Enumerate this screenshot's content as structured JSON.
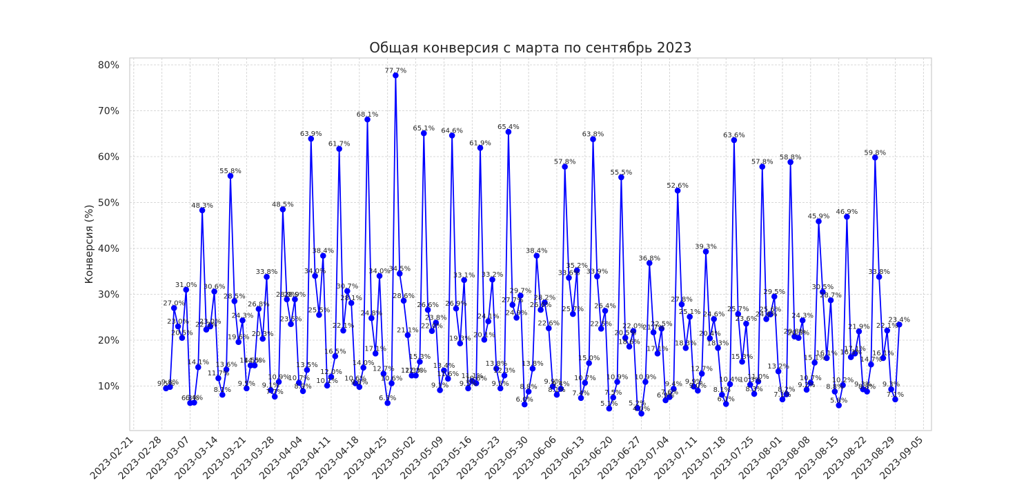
{
  "chart_data": {
    "type": "line",
    "title": "Общая конверсия с марта по сентябрь 2023",
    "xlabel": "",
    "ylabel": "Конверсия (%)",
    "xlim": [
      "2023-02-20",
      "2023-09-07"
    ],
    "ylim": [
      0.3,
      81.5
    ],
    "x_ticks": [
      "2023-02-21",
      "2023-02-28",
      "2023-03-07",
      "2023-03-14",
      "2023-03-21",
      "2023-03-28",
      "2023-04-04",
      "2023-04-11",
      "2023-04-18",
      "2023-04-25",
      "2023-05-02",
      "2023-05-09",
      "2023-05-16",
      "2023-05-23",
      "2023-05-30",
      "2023-06-06",
      "2023-06-13",
      "2023-06-20",
      "2023-06-27",
      "2023-07-04",
      "2023-07-11",
      "2023-07-18",
      "2023-07-25",
      "2023-08-01",
      "2023-08-08",
      "2023-08-15",
      "2023-08-22",
      "2023-08-29",
      "2023-09-05"
    ],
    "y_ticks": [
      10,
      20,
      30,
      40,
      50,
      60,
      70,
      80
    ],
    "y_tick_labels": [
      "10%",
      "20%",
      "30%",
      "40%",
      "50%",
      "60%",
      "70%",
      "80%"
    ],
    "grid": true,
    "line_color": "#0000ff",
    "marker_color": "#0000ff",
    "start_date": "2023-03-01",
    "values": [
      9.5,
      9.8,
      27.0,
      23.0,
      20.5,
      31.0,
      6.3,
      6.4,
      14.1,
      48.3,
      22.3,
      23.0,
      30.6,
      11.7,
      8.1,
      13.6,
      55.8,
      28.5,
      19.6,
      24.3,
      9.5,
      14.5,
      14.5,
      26.8,
      20.3,
      33.8,
      9.1,
      7.7,
      10.9,
      48.5,
      28.9,
      23.5,
      28.9,
      10.7,
      8.9,
      13.5,
      63.9,
      34.0,
      25.5,
      38.4,
      10.1,
      12.0,
      16.5,
      61.7,
      22.1,
      30.7,
      28.1,
      10.6,
      9.8,
      14.0,
      68.1,
      24.8,
      17.1,
      34.0,
      12.7,
      6.3,
      10.6,
      77.7,
      34.5,
      28.6,
      21.1,
      12.3,
      12.3,
      15.3,
      65.1,
      26.6,
      22.0,
      23.8,
      9.1,
      13.4,
      11.6,
      64.6,
      26.9,
      19.3,
      33.1,
      9.5,
      11.1,
      10.6,
      61.9,
      20.1,
      24.1,
      33.2,
      13.8,
      9.5,
      12.3,
      65.4,
      27.7,
      24.9,
      29.7,
      6.0,
      8.8,
      13.8,
      38.4,
      26.6,
      28.2,
      22.6,
      9.9,
      8.1,
      9.4,
      57.8,
      33.6,
      25.7,
      35.2,
      7.4,
      10.7,
      15.0,
      63.8,
      33.9,
      22.5,
      26.4,
      5.1,
      7.5,
      10.9,
      55.5,
      20.5,
      18.6,
      22.0,
      5.2,
      4.0,
      10.9,
      36.8,
      21.7,
      17.1,
      22.5,
      6.9,
      7.6,
      9.4,
      52.6,
      27.8,
      18.3,
      25.1,
      9.9,
      9.0,
      12.7,
      39.3,
      20.4,
      24.6,
      18.3,
      8.1,
      6.1,
      10.4,
      63.6,
      25.7,
      15.3,
      23.6,
      10.3,
      8.3,
      11.0,
      57.8,
      24.6,
      25.6,
      29.5,
      13.2,
      7.1,
      8.2,
      58.8,
      20.8,
      20.5,
      24.3,
      9.2,
      10.7,
      15.1,
      45.9,
      30.5,
      16.1,
      28.7,
      8.8,
      5.8,
      10.2,
      46.9,
      16.3,
      17.1,
      21.9,
      9.3,
      8.8,
      14.7,
      59.8,
      33.8,
      16.1,
      22.1,
      9.3,
      7.1,
      23.4
    ]
  }
}
